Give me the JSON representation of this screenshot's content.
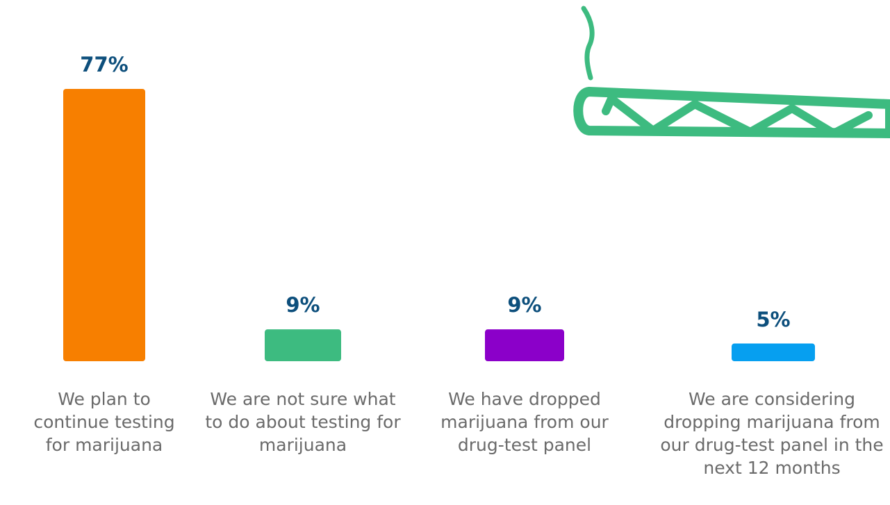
{
  "chart_data": {
    "type": "bar",
    "categories": [
      "We plan to continue testing for marijuana",
      "We are not sure what to do about testing for marijuana",
      "We have dropped marijuana from our drug-test panel",
      "We are considering dropping marijuana from our drug-test panel in the next 12 months"
    ],
    "values": [
      77,
      9,
      9,
      5
    ],
    "value_labels": [
      "77%",
      "9%",
      "9%",
      "5%"
    ],
    "colors": [
      "#f77f00",
      "#3dbb80",
      "#8b00c9",
      "#069ff0"
    ]
  }
}
